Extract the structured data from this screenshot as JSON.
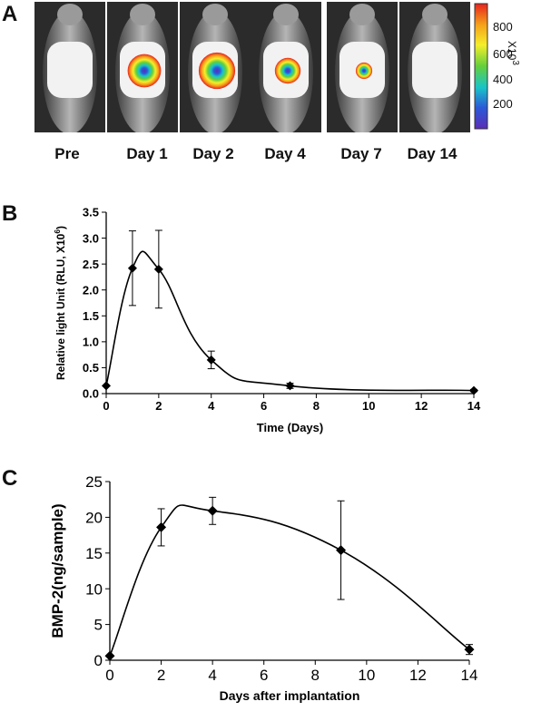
{
  "panel_labels": [
    "A",
    "B",
    "C"
  ],
  "panelA": {
    "timepoints": [
      "Pre",
      "Day 1",
      "Day 2",
      "Day 4",
      "Day 7",
      "Day 14"
    ],
    "signal_strength": [
      0,
      0.85,
      0.95,
      0.6,
      0.3,
      0
    ],
    "colorbar": {
      "ticks": [
        "800",
        "600",
        "400",
        "200"
      ],
      "unit": "X10^3",
      "unit_base": "X10",
      "unit_exp": "3",
      "colors": [
        "#e8231e",
        "#f5a21b",
        "#f5ee2a",
        "#63cf3d",
        "#19c4c8",
        "#2a5ad8",
        "#5b2db8"
      ]
    }
  },
  "chart_data": [
    {
      "id": "B",
      "type": "line",
      "xlabel": "Time (Days)",
      "ylabel": "Relative light Unit (RLU, X10",
      "ylabel_exp": "6",
      "x": [
        0,
        1,
        2,
        4,
        7,
        14
      ],
      "y": [
        0.15,
        2.42,
        2.4,
        0.65,
        0.15,
        0.06
      ],
      "yerr": [
        0,
        0.72,
        0.75,
        0.17,
        0.05,
        0.02
      ],
      "xlim": [
        0,
        14
      ],
      "ylim": [
        0,
        3.5
      ],
      "xticks": [
        "0",
        "2",
        "4",
        "6",
        "8",
        "10",
        "12",
        "14"
      ],
      "yticks": [
        "0.0",
        "0.5",
        "1.0",
        "1.5",
        "2.0",
        "2.5",
        "3.0",
        "3.5"
      ],
      "marker": "diamond",
      "grid": false
    },
    {
      "id": "C",
      "type": "line",
      "xlabel": "Days after implantation",
      "ylabel": "BMP-2(ng/sample)",
      "x": [
        0,
        2,
        4,
        9,
        14
      ],
      "y": [
        0.6,
        18.6,
        20.9,
        15.4,
        1.5
      ],
      "yerr": [
        0,
        2.6,
        1.9,
        6.9,
        0.7
      ],
      "xlim": [
        0,
        14
      ],
      "ylim": [
        0,
        25
      ],
      "xticks": [
        "0",
        "2",
        "4",
        "6",
        "8",
        "10",
        "12",
        "14"
      ],
      "yticks": [
        "0",
        "5",
        "10",
        "15",
        "20",
        "25"
      ],
      "marker": "diamond",
      "grid": false
    }
  ]
}
